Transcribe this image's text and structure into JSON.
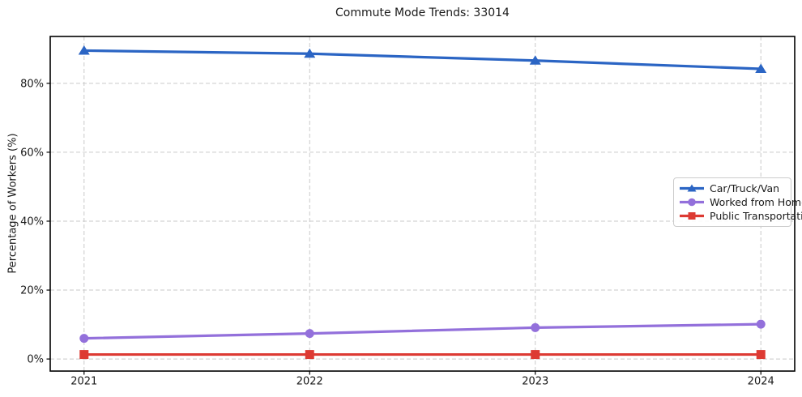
{
  "title": "Commute Mode Trends: 33014",
  "chart_data": {
    "type": "line",
    "title": "Commute Mode Trends: 33014",
    "xlabel": "",
    "ylabel": "Percentage of Workers (%)",
    "x": [
      2021,
      2022,
      2023,
      2024
    ],
    "x_tick_labels": [
      "2021",
      "2022",
      "2023",
      "2024"
    ],
    "y_ticks": [
      0,
      20,
      40,
      60,
      80
    ],
    "y_tick_labels": [
      "0%",
      "20%",
      "40%",
      "60%",
      "80%"
    ],
    "xlim": [
      2020.85,
      2024.15
    ],
    "ylim": [
      -3.5,
      93.6
    ],
    "grid": true,
    "grid_style": "dashed",
    "legend_position": "center-right",
    "series": [
      {
        "name": "Car/Truck/Van",
        "color": "#2b65c4",
        "marker": "triangle",
        "values": [
          89.5,
          88.6,
          86.6,
          84.2
        ]
      },
      {
        "name": "Worked from Home",
        "color": "#9370db",
        "marker": "circle",
        "values": [
          6.0,
          7.4,
          9.1,
          10.1
        ]
      },
      {
        "name": "Public Transportation",
        "color": "#dd3a33",
        "marker": "square",
        "values": [
          1.3,
          1.3,
          1.3,
          1.3
        ]
      }
    ],
    "colors": {
      "grid": "#c9c9c9",
      "spine": "#000000",
      "text": "#1a1a1a"
    }
  }
}
